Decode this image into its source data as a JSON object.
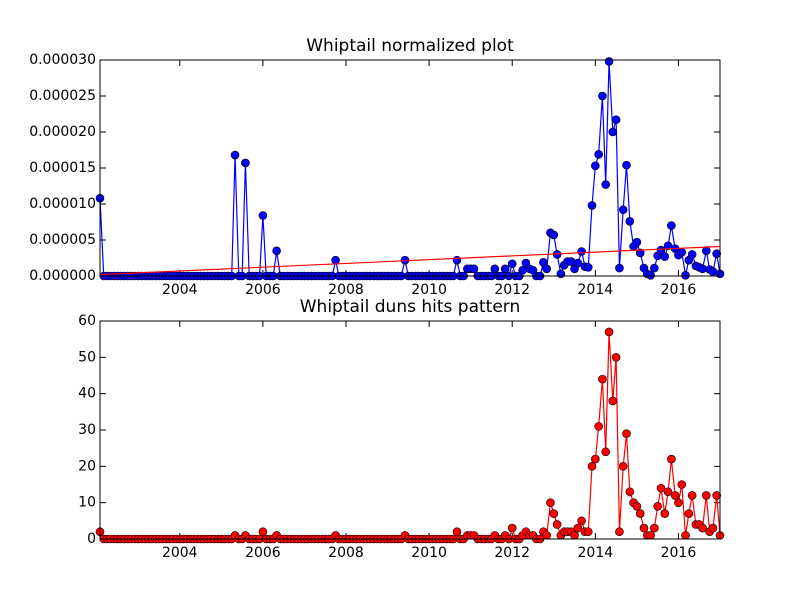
{
  "chart_data": [
    {
      "type": "line",
      "title": "Whiptail normalized plot",
      "x": [
        2002.08,
        2002.17,
        2002.25,
        2002.33,
        2002.42,
        2002.5,
        2002.58,
        2002.67,
        2002.75,
        2002.83,
        2002.92,
        2003.0,
        2003.08,
        2003.17,
        2003.25,
        2003.33,
        2003.42,
        2003.5,
        2003.58,
        2003.67,
        2003.75,
        2003.83,
        2003.92,
        2004.0,
        2004.08,
        2004.17,
        2004.25,
        2004.33,
        2004.42,
        2004.5,
        2004.58,
        2004.67,
        2004.75,
        2004.83,
        2004.92,
        2005.0,
        2005.08,
        2005.17,
        2005.25,
        2005.33,
        2005.42,
        2005.5,
        2005.58,
        2005.67,
        2005.75,
        2005.83,
        2005.92,
        2006.0,
        2006.08,
        2006.17,
        2006.25,
        2006.33,
        2006.42,
        2006.5,
        2006.58,
        2006.67,
        2006.75,
        2006.83,
        2006.92,
        2007.0,
        2007.08,
        2007.17,
        2007.25,
        2007.33,
        2007.42,
        2007.5,
        2007.58,
        2007.67,
        2007.75,
        2007.83,
        2007.92,
        2008.0,
        2008.08,
        2008.17,
        2008.25,
        2008.33,
        2008.42,
        2008.5,
        2008.58,
        2008.67,
        2008.75,
        2008.83,
        2008.92,
        2009.0,
        2009.08,
        2009.17,
        2009.25,
        2009.33,
        2009.42,
        2009.5,
        2009.58,
        2009.67,
        2009.75,
        2009.83,
        2009.92,
        2010.0,
        2010.08,
        2010.17,
        2010.25,
        2010.33,
        2010.42,
        2010.5,
        2010.58,
        2010.67,
        2010.75,
        2010.83,
        2010.92,
        2011.0,
        2011.08,
        2011.17,
        2011.25,
        2011.33,
        2011.42,
        2011.5,
        2011.58,
        2011.67,
        2011.75,
        2011.83,
        2011.92,
        2012.0,
        2012.08,
        2012.17,
        2012.25,
        2012.33,
        2012.42,
        2012.5,
        2012.58,
        2012.67,
        2012.75,
        2012.83,
        2012.92,
        2013.0,
        2013.08,
        2013.17,
        2013.25,
        2013.33,
        2013.42,
        2013.5,
        2013.58,
        2013.67,
        2013.75,
        2013.83,
        2013.92,
        2014.0,
        2014.08,
        2014.17,
        2014.25,
        2014.33,
        2014.42,
        2014.5,
        2014.58,
        2014.67,
        2014.75,
        2014.83,
        2014.92,
        2015.0,
        2015.08,
        2015.17,
        2015.25,
        2015.33,
        2015.42,
        2015.5,
        2015.58,
        2015.67,
        2015.75,
        2015.83,
        2015.92,
        2016.0,
        2016.08,
        2016.17,
        2016.25,
        2016.33,
        2016.42,
        2016.5,
        2016.58,
        2016.67,
        2016.75,
        2016.83,
        2016.92,
        2017.0
      ],
      "series": [
        {
          "color": "#0000ff",
          "marker": true,
          "values": [
            1.08e-05,
            0,
            0,
            0,
            0,
            0,
            0,
            0,
            0,
            0,
            0,
            0,
            0,
            0,
            0,
            0,
            0,
            0,
            0,
            0,
            0,
            0,
            0,
            0,
            0,
            0,
            0,
            0,
            0,
            0,
            0,
            0,
            0,
            0,
            0,
            0,
            0,
            0,
            0,
            1.68e-05,
            0,
            0,
            1.57e-05,
            0,
            0,
            0,
            0,
            8.4e-06,
            0,
            0,
            0,
            3.5e-06,
            0,
            0,
            0,
            0,
            0,
            0,
            0,
            0,
            0,
            0,
            0,
            0,
            0,
            0,
            0,
            0,
            2.2e-06,
            0,
            0,
            0,
            0,
            0,
            0,
            0,
            0,
            0,
            0,
            0,
            0,
            0,
            0,
            0,
            0,
            0,
            0,
            0,
            2.2e-06,
            0,
            0,
            0,
            0,
            0,
            0,
            0,
            0,
            0,
            0,
            0,
            0,
            0,
            0,
            2.2e-06,
            0,
            0,
            1e-06,
            1e-06,
            1e-06,
            0,
            0,
            0,
            0,
            0,
            1e-06,
            0,
            0,
            1e-06,
            0,
            1.7e-06,
            0,
            0,
            8e-07,
            1.8e-06,
            1e-06,
            8e-07,
            0,
            0,
            1.9e-06,
            1e-06,
            6e-06,
            5.7e-06,
            3e-06,
            3e-07,
            1.5e-06,
            2e-06,
            2e-06,
            1e-06,
            1.8e-06,
            3.4e-06,
            1.3e-06,
            1.2e-06,
            9.8e-06,
            1.53e-05,
            1.69e-05,
            2.5e-05,
            1.27e-05,
            2.98e-05,
            2e-05,
            2.17e-05,
            1.1e-06,
            9.2e-06,
            1.54e-05,
            7.6e-06,
            4.1e-06,
            4.7e-06,
            3.2e-06,
            1.1e-06,
            3e-07,
            1e-07,
            1.1e-06,
            2.8e-06,
            3.6e-06,
            2.7e-06,
            4.2e-06,
            7e-06,
            3.8e-06,
            2.9e-06,
            3.3e-06,
            1e-07,
            2.2e-06,
            3e-06,
            1.4e-06,
            1.2e-06,
            1e-06,
            3.5e-06,
            9e-07,
            6e-07,
            3.1e-06,
            3e-07
          ]
        },
        {
          "color": "#ff0000",
          "marker": false,
          "x": [
            2002.08,
            2017.0
          ],
          "values": [
            2e-07,
            4.1e-06
          ]
        }
      ],
      "xlim": [
        2002.08,
        2017.0
      ],
      "xticks": [
        2004,
        2006,
        2008,
        2010,
        2012,
        2014,
        2016
      ],
      "ylim": [
        0,
        3e-05
      ],
      "yticks": [
        {
          "value": 0,
          "label": "0.000000"
        },
        {
          "value": 5e-06,
          "label": "0.000005"
        },
        {
          "value": 1e-05,
          "label": "0.000010"
        },
        {
          "value": 1.5e-05,
          "label": "0.000015"
        },
        {
          "value": 2e-05,
          "label": "0.000020"
        },
        {
          "value": 2.5e-05,
          "label": "0.000025"
        },
        {
          "value": 3e-05,
          "label": "0.000030"
        }
      ]
    },
    {
      "type": "line",
      "title": "Whiptail duns hits pattern",
      "x": [
        2002.08,
        2002.17,
        2002.25,
        2002.33,
        2002.42,
        2002.5,
        2002.58,
        2002.67,
        2002.75,
        2002.83,
        2002.92,
        2003.0,
        2003.08,
        2003.17,
        2003.25,
        2003.33,
        2003.42,
        2003.5,
        2003.58,
        2003.67,
        2003.75,
        2003.83,
        2003.92,
        2004.0,
        2004.08,
        2004.17,
        2004.25,
        2004.33,
        2004.42,
        2004.5,
        2004.58,
        2004.67,
        2004.75,
        2004.83,
        2004.92,
        2005.0,
        2005.08,
        2005.17,
        2005.25,
        2005.33,
        2005.42,
        2005.5,
        2005.58,
        2005.67,
        2005.75,
        2005.83,
        2005.92,
        2006.0,
        2006.08,
        2006.17,
        2006.25,
        2006.33,
        2006.42,
        2006.5,
        2006.58,
        2006.67,
        2006.75,
        2006.83,
        2006.92,
        2007.0,
        2007.08,
        2007.17,
        2007.25,
        2007.33,
        2007.42,
        2007.5,
        2007.58,
        2007.67,
        2007.75,
        2007.83,
        2007.92,
        2008.0,
        2008.08,
        2008.17,
        2008.25,
        2008.33,
        2008.42,
        2008.5,
        2008.58,
        2008.67,
        2008.75,
        2008.83,
        2008.92,
        2009.0,
        2009.08,
        2009.17,
        2009.25,
        2009.33,
        2009.42,
        2009.5,
        2009.58,
        2009.67,
        2009.75,
        2009.83,
        2009.92,
        2010.0,
        2010.08,
        2010.17,
        2010.25,
        2010.33,
        2010.42,
        2010.5,
        2010.58,
        2010.67,
        2010.75,
        2010.83,
        2010.92,
        2011.0,
        2011.08,
        2011.17,
        2011.25,
        2011.33,
        2011.42,
        2011.5,
        2011.58,
        2011.67,
        2011.75,
        2011.83,
        2011.92,
        2012.0,
        2012.08,
        2012.17,
        2012.25,
        2012.33,
        2012.42,
        2012.5,
        2012.58,
        2012.67,
        2012.75,
        2012.83,
        2012.92,
        2013.0,
        2013.08,
        2013.17,
        2013.25,
        2013.33,
        2013.42,
        2013.5,
        2013.58,
        2013.67,
        2013.75,
        2013.83,
        2013.92,
        2014.0,
        2014.08,
        2014.17,
        2014.25,
        2014.33,
        2014.42,
        2014.5,
        2014.58,
        2014.67,
        2014.75,
        2014.83,
        2014.92,
        2015.0,
        2015.08,
        2015.17,
        2015.25,
        2015.33,
        2015.42,
        2015.5,
        2015.58,
        2015.67,
        2015.75,
        2015.83,
        2015.92,
        2016.0,
        2016.08,
        2016.17,
        2016.25,
        2016.33,
        2016.42,
        2016.5,
        2016.58,
        2016.67,
        2016.75,
        2016.83,
        2016.92,
        2017.0
      ],
      "series": [
        {
          "color": "#ff0000",
          "marker": true,
          "values": [
            2,
            0,
            0,
            0,
            0,
            0,
            0,
            0,
            0,
            0,
            0,
            0,
            0,
            0,
            0,
            0,
            0,
            0,
            0,
            0,
            0,
            0,
            0,
            0,
            0,
            0,
            0,
            0,
            0,
            0,
            0,
            0,
            0,
            0,
            0,
            0,
            0,
            0,
            0,
            1,
            0,
            0,
            1,
            0,
            0,
            0,
            0,
            2,
            0,
            0,
            0,
            1,
            0,
            0,
            0,
            0,
            0,
            0,
            0,
            0,
            0,
            0,
            0,
            0,
            0,
            0,
            0,
            0,
            1,
            0,
            0,
            0,
            0,
            0,
            0,
            0,
            0,
            0,
            0,
            0,
            0,
            0,
            0,
            0,
            0,
            0,
            0,
            0,
            1,
            0,
            0,
            0,
            0,
            0,
            0,
            0,
            0,
            0,
            0,
            0,
            0,
            0,
            0,
            2,
            0,
            0,
            1,
            1,
            1,
            0,
            0,
            0,
            0,
            0,
            1,
            0,
            0,
            1,
            0,
            3,
            0,
            0,
            1,
            2,
            1,
            1,
            0,
            0,
            2,
            1,
            10,
            7,
            4,
            1,
            2,
            2,
            2,
            1,
            3,
            5,
            2,
            2,
            20,
            22,
            31,
            44,
            24,
            57,
            38,
            50,
            2,
            20,
            29,
            13,
            10,
            9,
            7,
            3,
            1,
            1,
            3,
            9,
            14,
            7,
            13,
            22,
            12,
            10,
            15,
            1,
            7,
            12,
            4,
            4,
            3,
            12,
            2,
            3,
            12,
            1
          ]
        }
      ],
      "xlim": [
        2002.08,
        2017.0
      ],
      "xticks": [
        2004,
        2006,
        2008,
        2010,
        2012,
        2014,
        2016
      ],
      "ylim": [
        0,
        60
      ],
      "yticks": [
        0,
        10,
        20,
        30,
        40,
        50,
        60
      ]
    }
  ]
}
